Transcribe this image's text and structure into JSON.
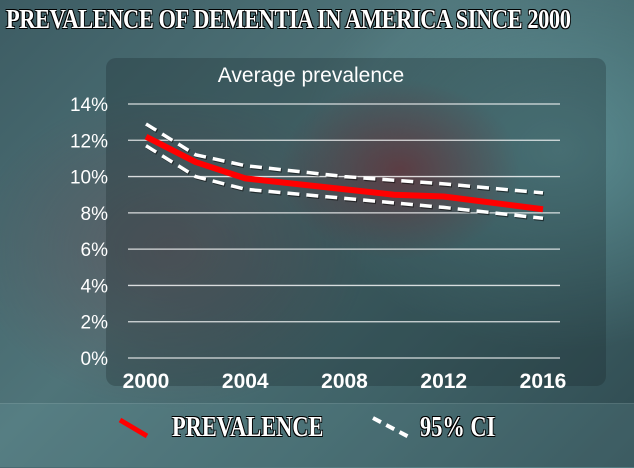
{
  "title": "PREVALENCE OF DEMENTIA IN AMERICA SINCE 2000",
  "chart_data": {
    "type": "line",
    "title": "Average prevalence",
    "xlabel": "",
    "ylabel": "",
    "xlim": [
      2000,
      2016
    ],
    "ylim": [
      0,
      14
    ],
    "x_ticks": [
      "2000",
      "2004",
      "2008",
      "2012",
      "2016"
    ],
    "y_ticks": [
      "0%",
      "2%",
      "4%",
      "6%",
      "8%",
      "10%",
      "12%",
      "14%"
    ],
    "grid": "horizontal",
    "legend_position": "bottom",
    "series": [
      {
        "name": "PREVALENCE",
        "color": "#ff0000",
        "style": "solid",
        "x": [
          2000,
          2002,
          2004,
          2008,
          2010,
          2012,
          2016
        ],
        "y": [
          12.2,
          10.8,
          9.9,
          9.3,
          9.0,
          8.9,
          8.2
        ]
      },
      {
        "name": "95% CI",
        "color": "#ffffff",
        "style": "dashed",
        "x": [
          2000,
          2002,
          2004,
          2008,
          2012,
          2016
        ],
        "y": [
          12.9,
          11.2,
          10.6,
          10.0,
          9.6,
          9.1
        ]
      },
      {
        "name": "95% CI",
        "color": "#ffffff",
        "style": "dashed",
        "x": [
          2000,
          2002,
          2004,
          2008,
          2012,
          2016
        ],
        "y": [
          11.7,
          10.0,
          9.3,
          8.8,
          8.3,
          7.7
        ]
      }
    ]
  }
}
